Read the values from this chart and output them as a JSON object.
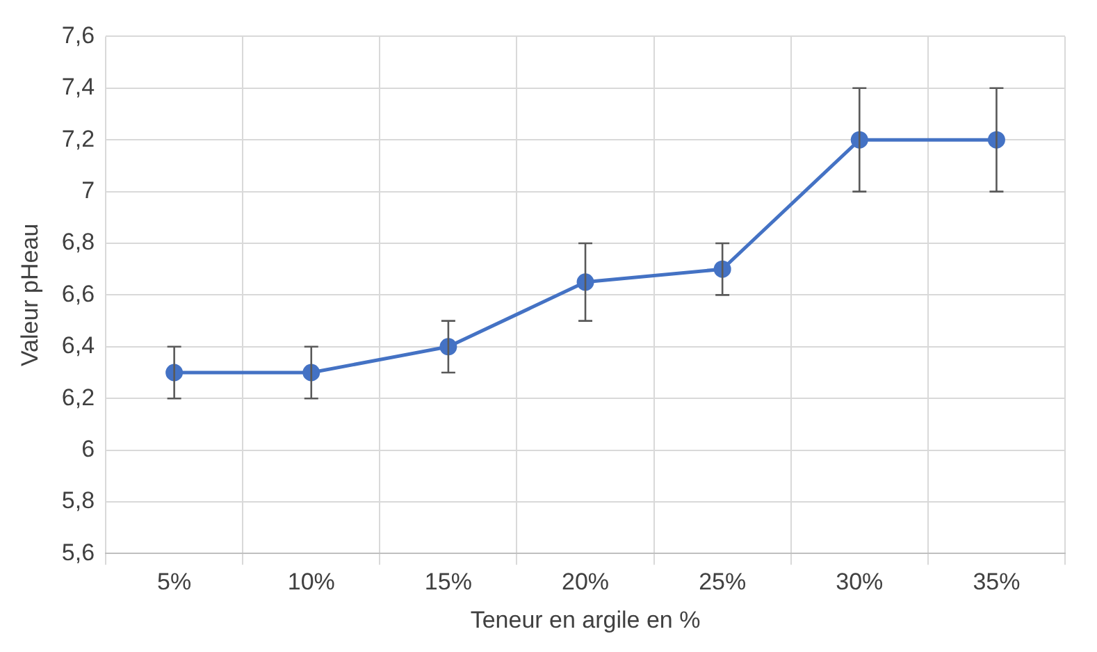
{
  "chart_data": {
    "type": "line",
    "xlabel": "Teneur en argile en %",
    "ylabel": "Valeur pHeau",
    "categories": [
      "5%",
      "10%",
      "15%",
      "20%",
      "25%",
      "30%",
      "35%"
    ],
    "series": [
      {
        "color": "#4472c4",
        "values": [
          6.3,
          6.3,
          6.4,
          6.65,
          6.7,
          7.2,
          7.2
        ],
        "errors": [
          [
            6.2,
            6.4
          ],
          [
            6.2,
            6.4
          ],
          [
            6.3,
            6.5
          ],
          [
            6.5,
            6.8
          ],
          [
            6.6,
            6.8
          ],
          [
            7.0,
            7.4
          ],
          [
            7.0,
            7.4
          ]
        ]
      }
    ],
    "ylim": [
      5.6,
      7.6
    ],
    "yticks": [
      {
        "value": 5.6,
        "label": "5,6"
      },
      {
        "value": 5.8,
        "label": "5,8"
      },
      6,
      {
        "value": 6.2,
        "label": "6,2"
      },
      {
        "value": 6.4,
        "label": "6,4"
      },
      {
        "value": 6.6,
        "label": "6,6"
      },
      {
        "value": 6.8,
        "label": "6,8"
      },
      7,
      {
        "value": 7.2,
        "label": "7,2"
      },
      {
        "value": 7.4,
        "label": "7,4"
      },
      {
        "value": 7.6,
        "label": "7,6"
      }
    ],
    "grid": true,
    "marker": "circle",
    "line_style": "solid",
    "legend": false
  }
}
